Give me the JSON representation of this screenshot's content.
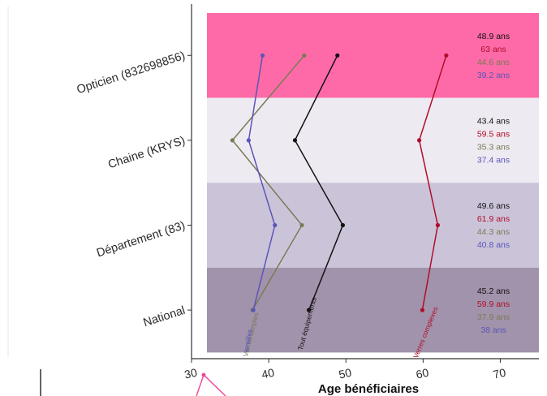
{
  "chart_data": {
    "type": "line",
    "xlabel": "Age bénéficiaires",
    "ylabel": "",
    "xlim": [
      30,
      75
    ],
    "x_ticks": [
      30,
      40,
      50,
      60,
      70
    ],
    "categories": [
      "Opticien (832698856)",
      "Chaine (KRYS)",
      "Département (83)",
      "National"
    ],
    "band_colors": [
      "#fd6aa7",
      "#eeeaf1",
      "#cbc4d9",
      "#a193ab"
    ],
    "series": [
      {
        "name": "Tout équipements",
        "color": "#111111",
        "values": [
          48.9,
          43.4,
          49.6,
          45.2
        ],
        "labels": [
          "48.9 ans",
          "43.4 ans",
          "49.6 ans",
          "45.2 ans"
        ]
      },
      {
        "name": "Verres complexes",
        "color": "#b10d2a",
        "values": [
          63,
          59.5,
          61.9,
          59.9
        ],
        "labels": [
          "63 ans",
          "59.5 ans",
          "61.9 ans",
          "59.9 ans"
        ]
      },
      {
        "name": "Verres simples",
        "color": "#7a7b56",
        "values": [
          44.6,
          35.3,
          44.3,
          37.9
        ],
        "labels": [
          "44.6 ans",
          "35.3 ans",
          "44.3 ans",
          "37.9 ans"
        ]
      },
      {
        "name": "lentilles",
        "color": "#5a55b8",
        "values": [
          39.2,
          37.4,
          40.8,
          38
        ],
        "labels": [
          "39.2 ans",
          "37.4 ans",
          "40.8 ans",
          "38 ans"
        ]
      }
    ]
  }
}
